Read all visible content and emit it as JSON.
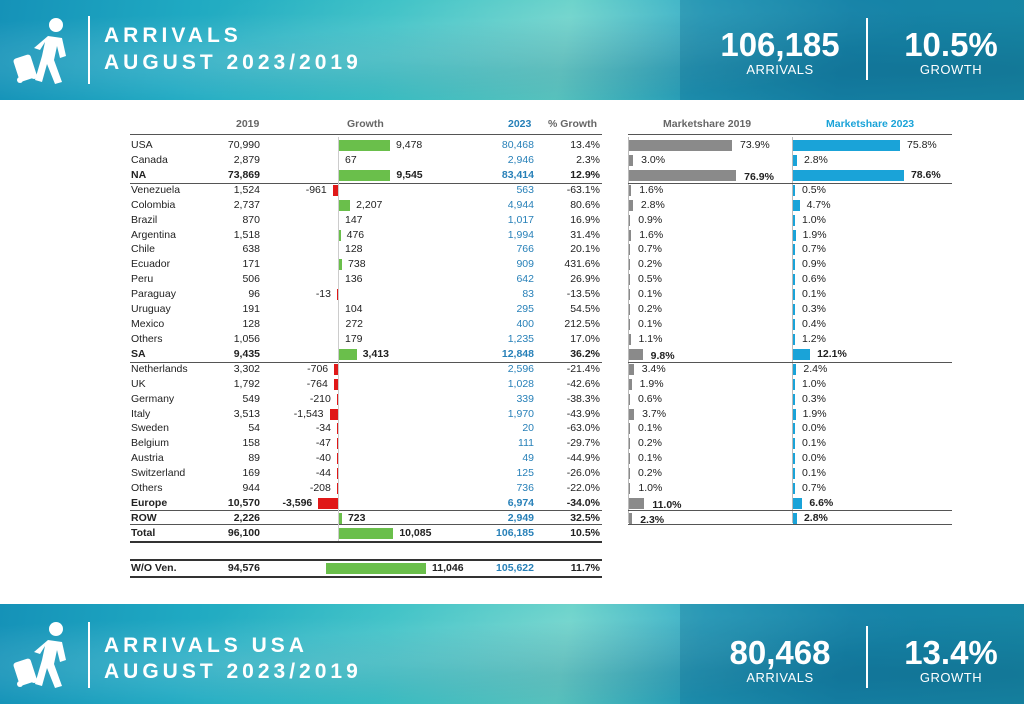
{
  "top_banner": {
    "title_line1": "ARRIVALS",
    "title_line2": "AUGUST 2023/2019",
    "kpi1_value": "106,185",
    "kpi1_label": "ARRIVALS",
    "kpi2_value": "10.5%",
    "kpi2_label": "GROWTH"
  },
  "bottom_banner": {
    "title_line1": "ARRIVALS USA",
    "title_line2": "AUGUST 2023/2019",
    "kpi1_value": "80,468",
    "kpi1_label": "ARRIVALS",
    "kpi2_value": "13.4%",
    "kpi2_label": "GROWTH"
  },
  "headers": {
    "y2019": "2019",
    "growth": "Growth",
    "y2023": "2023",
    "pct_growth": "% Growth",
    "ms2019": "Marketshare 2019",
    "ms2023": "Marketshare 2023"
  },
  "rows": [
    {
      "country": "USA",
      "v2019": "70,990",
      "growth": "9,478",
      "g": 9478,
      "v2023": "80,468",
      "pct": "13.4%",
      "ms19": "73.9%",
      "m19": 73.9,
      "ms23": "75.8%",
      "m23": 75.8,
      "bold": false
    },
    {
      "country": "Canada",
      "v2019": "2,879",
      "growth": "67",
      "g": 67,
      "v2023": "2,946",
      "pct": "2.3%",
      "ms19": "3.0%",
      "m19": 3.0,
      "ms23": "2.8%",
      "m23": 2.8,
      "bold": false
    },
    {
      "country": "NA",
      "v2019": "73,869",
      "growth": "9,545",
      "g": 9545,
      "v2023": "83,414",
      "pct": "12.9%",
      "ms19": "76.9%",
      "m19": 76.9,
      "ms23": "78.6%",
      "m23": 78.6,
      "bold": true
    },
    {
      "country": "Venezuela",
      "v2019": "1,524",
      "growth": "-961",
      "g": -961,
      "v2023": "563",
      "pct": "-63.1%",
      "ms19": "1.6%",
      "m19": 1.6,
      "ms23": "0.5%",
      "m23": 0.5,
      "bold": false
    },
    {
      "country": "Colombia",
      "v2019": "2,737",
      "growth": "2,207",
      "g": 2207,
      "v2023": "4,944",
      "pct": "80.6%",
      "ms19": "2.8%",
      "m19": 2.8,
      "ms23": "4.7%",
      "m23": 4.7,
      "bold": false
    },
    {
      "country": "Brazil",
      "v2019": "870",
      "growth": "147",
      "g": 147,
      "v2023": "1,017",
      "pct": "16.9%",
      "ms19": "0.9%",
      "m19": 0.9,
      "ms23": "1.0%",
      "m23": 1.0,
      "bold": false
    },
    {
      "country": "Argentina",
      "v2019": "1,518",
      "growth": "476",
      "g": 476,
      "v2023": "1,994",
      "pct": "31.4%",
      "ms19": "1.6%",
      "m19": 1.6,
      "ms23": "1.9%",
      "m23": 1.9,
      "bold": false
    },
    {
      "country": "Chile",
      "v2019": "638",
      "growth": "128",
      "g": 128,
      "v2023": "766",
      "pct": "20.1%",
      "ms19": "0.7%",
      "m19": 0.7,
      "ms23": "0.7%",
      "m23": 0.7,
      "bold": false
    },
    {
      "country": "Ecuador",
      "v2019": "171",
      "growth": "738",
      "g": 738,
      "v2023": "909",
      "pct": "431.6%",
      "ms19": "0.2%",
      "m19": 0.2,
      "ms23": "0.9%",
      "m23": 0.9,
      "bold": false
    },
    {
      "country": "Peru",
      "v2019": "506",
      "growth": "136",
      "g": 136,
      "v2023": "642",
      "pct": "26.9%",
      "ms19": "0.5%",
      "m19": 0.5,
      "ms23": "0.6%",
      "m23": 0.6,
      "bold": false
    },
    {
      "country": "Paraguay",
      "v2019": "96",
      "growth": "-13",
      "g": -13,
      "v2023": "83",
      "pct": "-13.5%",
      "ms19": "0.1%",
      "m19": 0.1,
      "ms23": "0.1%",
      "m23": 0.1,
      "bold": false
    },
    {
      "country": "Uruguay",
      "v2019": "191",
      "growth": "104",
      "g": 104,
      "v2023": "295",
      "pct": "54.5%",
      "ms19": "0.2%",
      "m19": 0.2,
      "ms23": "0.3%",
      "m23": 0.3,
      "bold": false
    },
    {
      "country": "Mexico",
      "v2019": "128",
      "growth": "272",
      "g": 272,
      "v2023": "400",
      "pct": "212.5%",
      "ms19": "0.1%",
      "m19": 0.1,
      "ms23": "0.4%",
      "m23": 0.4,
      "bold": false
    },
    {
      "country": "Others",
      "v2019": "1,056",
      "growth": "179",
      "g": 179,
      "v2023": "1,235",
      "pct": "17.0%",
      "ms19": "1.1%",
      "m19": 1.1,
      "ms23": "1.2%",
      "m23": 1.2,
      "bold": false
    },
    {
      "country": "SA",
      "v2019": "9,435",
      "growth": "3,413",
      "g": 3413,
      "v2023": "12,848",
      "pct": "36.2%",
      "ms19": "9.8%",
      "m19": 9.8,
      "ms23": "12.1%",
      "m23": 12.1,
      "bold": true
    },
    {
      "country": "Netherlands",
      "v2019": "3,302",
      "growth": "-706",
      "g": -706,
      "v2023": "2,596",
      "pct": "-21.4%",
      "ms19": "3.4%",
      "m19": 3.4,
      "ms23": "2.4%",
      "m23": 2.4,
      "bold": false
    },
    {
      "country": "UK",
      "v2019": "1,792",
      "growth": "-764",
      "g": -764,
      "v2023": "1,028",
      "pct": "-42.6%",
      "ms19": "1.9%",
      "m19": 1.9,
      "ms23": "1.0%",
      "m23": 1.0,
      "bold": false
    },
    {
      "country": "Germany",
      "v2019": "549",
      "growth": "-210",
      "g": -210,
      "v2023": "339",
      "pct": "-38.3%",
      "ms19": "0.6%",
      "m19": 0.6,
      "ms23": "0.3%",
      "m23": 0.3,
      "bold": false
    },
    {
      "country": "Italy",
      "v2019": "3,513",
      "growth": "-1,543",
      "g": -1543,
      "v2023": "1,970",
      "pct": "-43.9%",
      "ms19": "3.7%",
      "m19": 3.7,
      "ms23": "1.9%",
      "m23": 1.9,
      "bold": false
    },
    {
      "country": "Sweden",
      "v2019": "54",
      "growth": "-34",
      "g": -34,
      "v2023": "20",
      "pct": "-63.0%",
      "ms19": "0.1%",
      "m19": 0.1,
      "ms23": "0.0%",
      "m23": 0.0,
      "bold": false
    },
    {
      "country": "Belgium",
      "v2019": "158",
      "growth": "-47",
      "g": -47,
      "v2023": "111",
      "pct": "-29.7%",
      "ms19": "0.2%",
      "m19": 0.2,
      "ms23": "0.1%",
      "m23": 0.1,
      "bold": false
    },
    {
      "country": "Austria",
      "v2019": "89",
      "growth": "-40",
      "g": -40,
      "v2023": "49",
      "pct": "-44.9%",
      "ms19": "0.1%",
      "m19": 0.1,
      "ms23": "0.0%",
      "m23": 0.0,
      "bold": false
    },
    {
      "country": "Switzerland",
      "v2019": "169",
      "growth": "-44",
      "g": -44,
      "v2023": "125",
      "pct": "-26.0%",
      "ms19": "0.2%",
      "m19": 0.2,
      "ms23": "0.1%",
      "m23": 0.1,
      "bold": false
    },
    {
      "country": "Others",
      "v2019": "944",
      "growth": "-208",
      "g": -208,
      "v2023": "736",
      "pct": "-22.0%",
      "ms19": "1.0%",
      "m19": 1.0,
      "ms23": "0.7%",
      "m23": 0.7,
      "bold": false
    },
    {
      "country": "Europe",
      "v2019": "10,570",
      "growth": "-3,596",
      "g": -3596,
      "v2023": "6,974",
      "pct": "-34.0%",
      "ms19": "11.0%",
      "m19": 11.0,
      "ms23": "6.6%",
      "m23": 6.6,
      "bold": true
    },
    {
      "country": "ROW",
      "v2019": "2,226",
      "growth": "723",
      "g": 723,
      "v2023": "2,949",
      "pct": "32.5%",
      "ms19": "2.3%",
      "m19": 2.3,
      "ms23": "2.8%",
      "m23": 2.8,
      "bold": true
    },
    {
      "country": "Total",
      "v2019": "96,100",
      "growth": "10,085",
      "g": 10085,
      "v2023": "106,185",
      "pct": "10.5%",
      "ms19": "",
      "m19": 0,
      "ms23": "",
      "m23": 0,
      "bold": true
    },
    {
      "country": "W/O Ven.",
      "v2019": "94,576",
      "growth": "11,046",
      "g": 11046,
      "v2023": "105,622",
      "pct": "11.7%",
      "ms19": "",
      "m19": 0,
      "ms23": "",
      "m23": 0,
      "bold": true
    }
  ],
  "colors": {
    "growth_positive": "#6abf4b",
    "growth_negative": "#e01818",
    "ms2019": "#8a8a8a",
    "ms2023": "#1aa3d8",
    "value2023_text": "#2780b8"
  }
}
